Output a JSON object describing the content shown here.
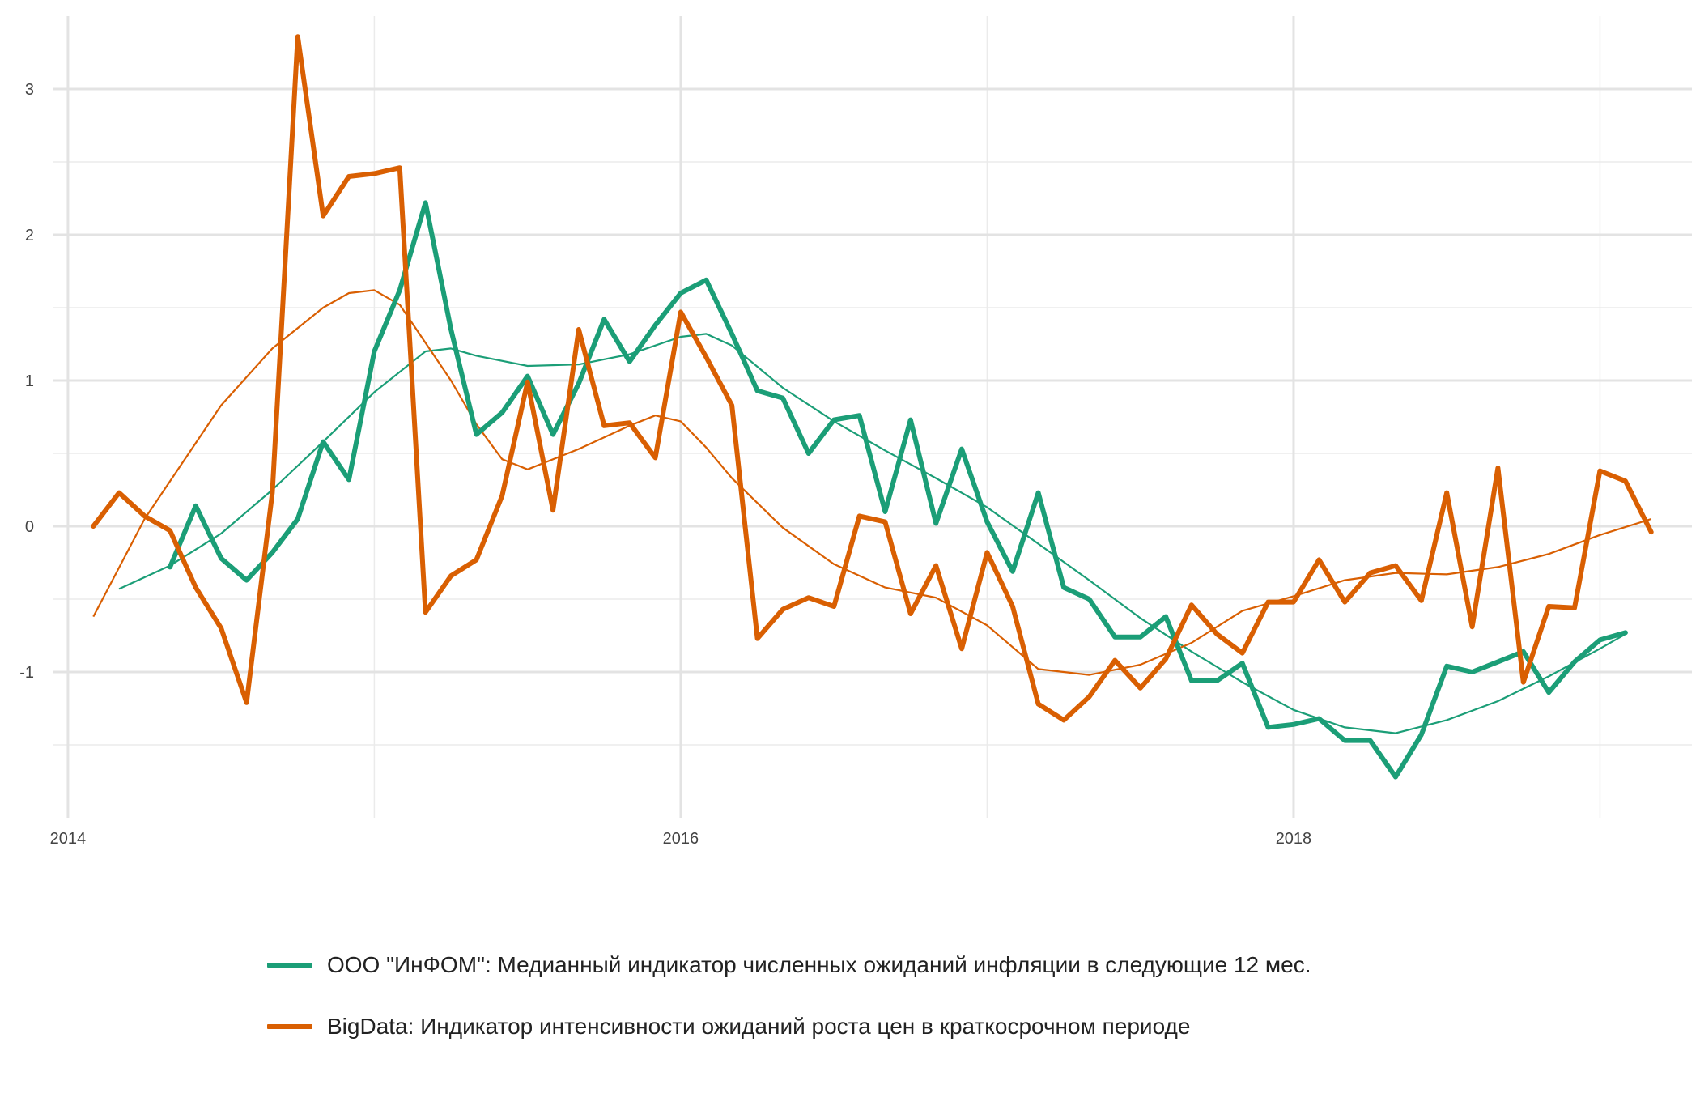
{
  "chart_data": {
    "type": "line",
    "title": "",
    "xlabel": "",
    "ylabel": "",
    "x_start": "2014-01",
    "xlim": [
      2013.95,
      2019.3
    ],
    "ylim": [
      -2.0,
      3.5
    ],
    "x_ticks": [
      {
        "value": 2014,
        "label": "2014"
      },
      {
        "value": 2016,
        "label": "2016"
      },
      {
        "value": 2018,
        "label": "2018"
      }
    ],
    "x_minor_grid": [
      2015,
      2017,
      2019
    ],
    "y_ticks": [
      {
        "value": -1,
        "label": "-1"
      },
      {
        "value": 0,
        "label": "0"
      },
      {
        "value": 1,
        "label": "1"
      },
      {
        "value": 2,
        "label": "2"
      },
      {
        "value": 3,
        "label": "3"
      }
    ],
    "y_minor_grid": [
      -1.5,
      -0.5,
      0.5,
      1.5,
      2.5
    ],
    "grid": true,
    "legend_position": "bottom",
    "series": [
      {
        "name": "ООО \"ИнФОМ\": Медианный индикатор численных ожиданий инфляции в следующие 12 мес.",
        "color": "#1b9e77",
        "x": [
          2014.333,
          2014.417,
          2014.5,
          2014.583,
          2014.667,
          2014.75,
          2014.833,
          2014.917,
          2015.0,
          2015.083,
          2015.167,
          2015.25,
          2015.333,
          2015.417,
          2015.5,
          2015.583,
          2015.667,
          2015.75,
          2015.833,
          2015.917,
          2016.0,
          2016.083,
          2016.167,
          2016.25,
          2016.333,
          2016.417,
          2016.5,
          2016.583,
          2016.667,
          2016.75,
          2016.833,
          2016.917,
          2017.0,
          2017.083,
          2017.167,
          2017.25,
          2017.333,
          2017.417,
          2017.5,
          2017.583,
          2017.667,
          2017.75,
          2017.833,
          2017.917,
          2018.0,
          2018.083,
          2018.167,
          2018.25,
          2018.333,
          2018.417,
          2018.5,
          2018.583,
          2018.667,
          2018.75,
          2018.833,
          2018.917,
          2019.0,
          2019.083
        ],
        "values": [
          -0.28,
          0.14,
          -0.22,
          -0.37,
          -0.18,
          0.05,
          0.58,
          0.32,
          1.2,
          1.62,
          2.22,
          1.35,
          0.63,
          0.78,
          1.03,
          0.63,
          0.98,
          1.42,
          1.13,
          1.38,
          1.6,
          1.69,
          1.32,
          0.93,
          0.88,
          0.5,
          0.73,
          0.76,
          0.1,
          0.73,
          0.02,
          0.53,
          0.03,
          -0.31,
          0.23,
          -0.42,
          -0.5,
          -0.76,
          -0.76,
          -0.62,
          -1.06,
          -1.06,
          -0.94,
          -1.38,
          -1.36,
          -1.32,
          -1.47,
          -1.47,
          -1.72,
          -1.43,
          -0.96,
          -1.0,
          -0.93,
          -0.86,
          -1.14,
          -0.93,
          -0.78,
          -0.73
        ],
        "trend_x": [
          2014.167,
          2014.333,
          2014.5,
          2014.667,
          2014.833,
          2015.0,
          2015.167,
          2015.25,
          2015.333,
          2015.5,
          2015.667,
          2015.833,
          2016.0,
          2016.083,
          2016.167,
          2016.333,
          2016.5,
          2016.667,
          2016.833,
          2017.0,
          2017.167,
          2017.333,
          2017.5,
          2017.667,
          2017.833,
          2018.0,
          2018.167,
          2018.333,
          2018.5,
          2018.667,
          2018.833,
          2019.0,
          2019.083
        ],
        "trend_values": [
          -0.43,
          -0.27,
          -0.05,
          0.25,
          0.58,
          0.92,
          1.2,
          1.22,
          1.17,
          1.1,
          1.11,
          1.18,
          1.3,
          1.32,
          1.24,
          0.95,
          0.72,
          0.52,
          0.33,
          0.13,
          -0.12,
          -0.37,
          -0.63,
          -0.86,
          -1.07,
          -1.26,
          -1.38,
          -1.42,
          -1.33,
          -1.2,
          -1.03,
          -0.84,
          -0.74
        ]
      },
      {
        "name": "BigData: Индикатор интенсивности ожиданий роста цен в краткосрочном периоде",
        "color": "#d95f02",
        "x": [
          2014.083,
          2014.167,
          2014.25,
          2014.333,
          2014.417,
          2014.5,
          2014.583,
          2014.667,
          2014.75,
          2014.833,
          2014.917,
          2015.0,
          2015.083,
          2015.167,
          2015.25,
          2015.333,
          2015.417,
          2015.5,
          2015.583,
          2015.667,
          2015.75,
          2015.833,
          2015.917,
          2016.0,
          2016.083,
          2016.167,
          2016.25,
          2016.333,
          2016.417,
          2016.5,
          2016.583,
          2016.667,
          2016.75,
          2016.833,
          2016.917,
          2017.0,
          2017.083,
          2017.167,
          2017.25,
          2017.333,
          2017.417,
          2017.5,
          2017.583,
          2017.667,
          2017.75,
          2017.833,
          2017.917,
          2018.0,
          2018.083,
          2018.167,
          2018.25,
          2018.333,
          2018.417,
          2018.5,
          2018.583,
          2018.667,
          2018.75,
          2018.833,
          2018.917,
          2019.0,
          2019.083,
          2019.167
        ],
        "values": [
          0.0,
          0.23,
          0.07,
          -0.03,
          -0.42,
          -0.7,
          -1.21,
          0.23,
          3.36,
          2.13,
          2.4,
          2.42,
          2.46,
          -0.59,
          -0.34,
          -0.23,
          0.21,
          0.99,
          0.11,
          1.35,
          0.69,
          0.71,
          0.47,
          1.47,
          1.16,
          0.83,
          -0.77,
          -0.57,
          -0.49,
          -0.55,
          0.07,
          0.03,
          -0.6,
          -0.27,
          -0.84,
          -0.18,
          -0.55,
          -1.22,
          -1.33,
          -1.17,
          -0.92,
          -1.11,
          -0.91,
          -0.54,
          -0.74,
          -0.87,
          -0.52,
          -0.52,
          -0.23,
          -0.52,
          -0.32,
          -0.27,
          -0.51,
          0.23,
          -0.69,
          0.4,
          -1.07,
          -0.55,
          -0.56,
          0.38,
          0.31,
          -0.04
        ],
        "trend_x": [
          2014.083,
          2014.25,
          2014.5,
          2014.667,
          2014.833,
          2014.917,
          2015.0,
          2015.083,
          2015.25,
          2015.333,
          2015.417,
          2015.5,
          2015.667,
          2015.833,
          2015.917,
          2016.0,
          2016.083,
          2016.167,
          2016.333,
          2016.5,
          2016.667,
          2016.833,
          2017.0,
          2017.167,
          2017.333,
          2017.5,
          2017.667,
          2017.833,
          2018.0,
          2018.167,
          2018.333,
          2018.5,
          2018.667,
          2018.833,
          2019.0,
          2019.167
        ],
        "trend_values": [
          -0.62,
          0.05,
          0.83,
          1.22,
          1.5,
          1.6,
          1.62,
          1.52,
          1.0,
          0.7,
          0.46,
          0.39,
          0.53,
          0.69,
          0.76,
          0.72,
          0.54,
          0.33,
          -0.01,
          -0.26,
          -0.42,
          -0.49,
          -0.68,
          -0.98,
          -1.02,
          -0.95,
          -0.8,
          -0.58,
          -0.48,
          -0.37,
          -0.32,
          -0.33,
          -0.28,
          -0.19,
          -0.06,
          0.05
        ]
      }
    ]
  }
}
